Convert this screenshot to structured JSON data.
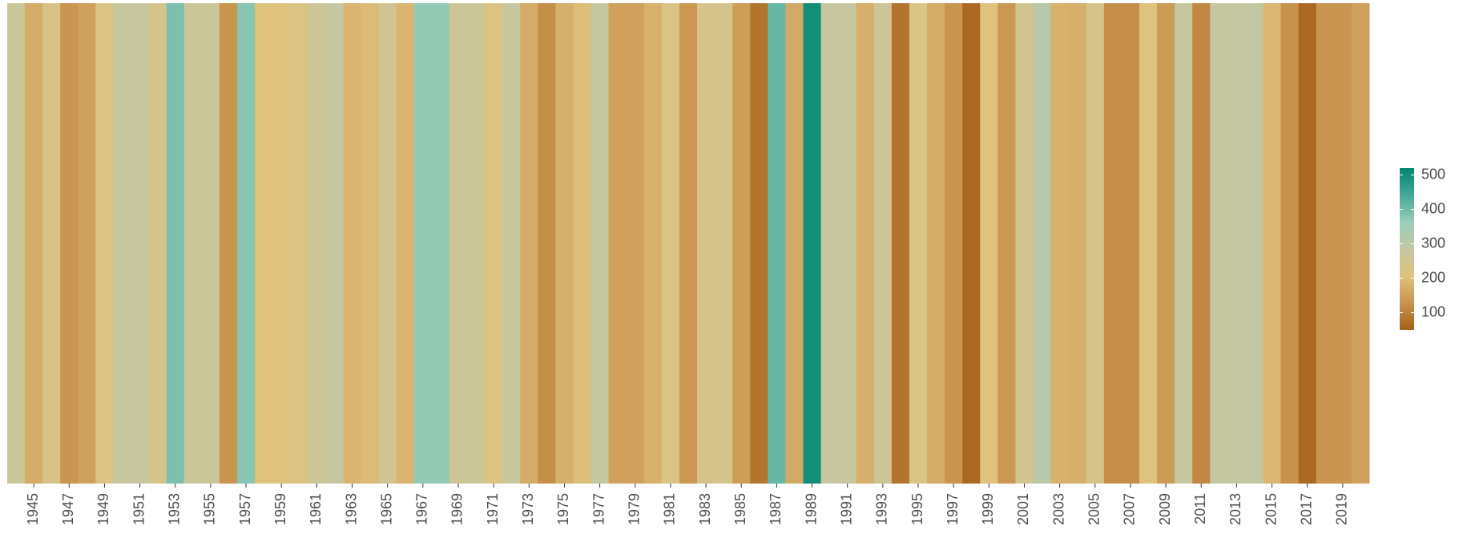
{
  "chart_data": {
    "type": "stripes",
    "x": [
      1944,
      1945,
      1946,
      1947,
      1948,
      1949,
      1950,
      1951,
      1952,
      1953,
      1954,
      1955,
      1956,
      1957,
      1958,
      1959,
      1960,
      1961,
      1962,
      1963,
      1964,
      1965,
      1966,
      1967,
      1968,
      1969,
      1970,
      1971,
      1972,
      1973,
      1974,
      1975,
      1976,
      1977,
      1978,
      1979,
      1980,
      1981,
      1982,
      1983,
      1984,
      1985,
      1986,
      1987,
      1988,
      1989,
      1990,
      1991,
      1992,
      1993,
      1994,
      1995,
      1996,
      1997,
      1998,
      1999,
      2000,
      2001,
      2002,
      2003,
      2004,
      2005,
      2006,
      2007,
      2008,
      2009,
      2010,
      2011,
      2012,
      2013,
      2014,
      2015,
      2016,
      2017,
      2018,
      2019,
      2020
    ],
    "values": [
      270,
      170,
      230,
      130,
      150,
      220,
      280,
      280,
      240,
      390,
      270,
      270,
      130,
      380,
      210,
      210,
      220,
      260,
      285,
      185,
      195,
      250,
      185,
      370,
      370,
      265,
      265,
      215,
      275,
      170,
      120,
      175,
      200,
      285,
      150,
      150,
      180,
      225,
      135,
      240,
      240,
      145,
      80,
      410,
      165,
      500,
      280,
      280,
      175,
      260,
      80,
      225,
      170,
      130,
      60,
      210,
      135,
      245,
      310,
      180,
      175,
      235,
      120,
      120,
      210,
      140,
      280,
      110,
      285,
      285,
      290,
      190,
      125,
      60,
      130,
      130,
      150
    ],
    "xticks": [
      1945,
      1947,
      1949,
      1951,
      1953,
      1955,
      1957,
      1959,
      1961,
      1963,
      1965,
      1967,
      1969,
      1971,
      1973,
      1975,
      1977,
      1979,
      1981,
      1983,
      1985,
      1987,
      1989,
      1991,
      1993,
      1995,
      1997,
      1999,
      2001,
      2003,
      2005,
      2007,
      2009,
      2011,
      2013,
      2015,
      2017,
      2019
    ],
    "colors": [
      "#a6611a",
      "#c9944f",
      "#dfc27d",
      "#c4c7a0",
      "#9acdb9",
      "#45a898",
      "#018571"
    ],
    "clim": [
      50,
      520
    ],
    "cticks": [
      100,
      200,
      300,
      400,
      500
    ]
  }
}
